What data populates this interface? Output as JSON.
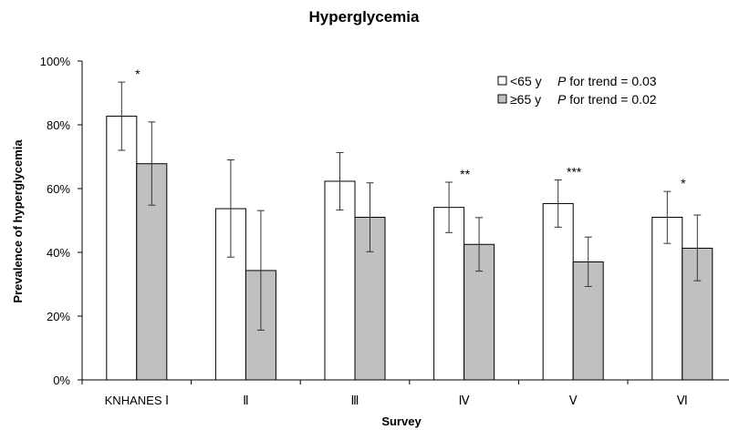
{
  "chart_data": {
    "type": "bar",
    "title": "Hyperglycemia",
    "xlabel": "Survey",
    "ylabel": "Prevalence of hyperglycemia",
    "categories": [
      "KNHANES Ⅰ",
      "Ⅱ",
      "Ⅲ",
      "Ⅳ",
      "Ⅴ",
      "Ⅵ"
    ],
    "ylim": [
      0,
      100
    ],
    "yticks": [
      0,
      20,
      40,
      60,
      80,
      100
    ],
    "ytick_labels": [
      "0%",
      "20%",
      "40%",
      "60%",
      "80%",
      "100%"
    ],
    "grid": false,
    "legend_position": "top-right",
    "series": [
      {
        "name": "<65 y",
        "trend_label": "P for trend = 0.03",
        "fill": "#ffffff",
        "values": [
          82.7,
          53.7,
          62.3,
          54.1,
          55.3,
          51.0
        ],
        "error_low": [
          72.0,
          38.5,
          53.3,
          46.2,
          47.9,
          42.8
        ],
        "error_high": [
          93.4,
          69.0,
          71.3,
          62.0,
          62.7,
          59.1
        ]
      },
      {
        "name": "≥65 y",
        "trend_label": "P for trend = 0.02",
        "fill": "#c0c0c0",
        "values": [
          67.8,
          34.3,
          51.0,
          42.5,
          37.0,
          41.3
        ],
        "error_low": [
          54.8,
          15.6,
          40.2,
          34.1,
          29.3,
          31.1
        ],
        "error_high": [
          80.9,
          53.1,
          61.8,
          50.9,
          44.8,
          51.7
        ]
      }
    ],
    "significance": [
      "*",
      "",
      "",
      "**",
      "***",
      "*"
    ]
  }
}
